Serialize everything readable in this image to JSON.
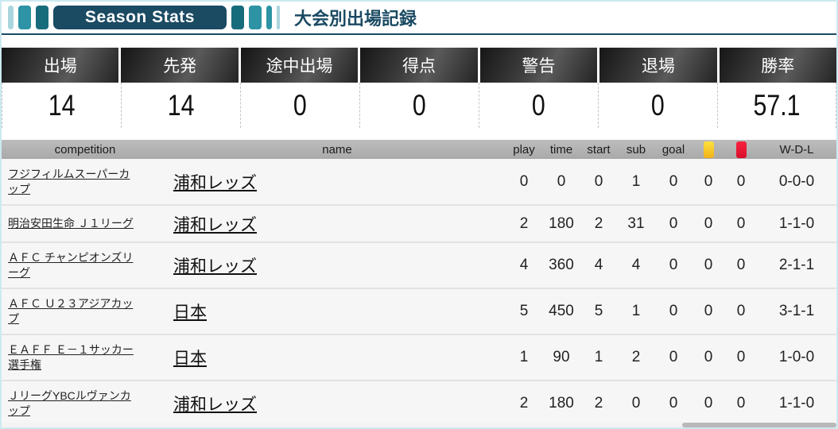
{
  "header": {
    "badge_label": "Season Stats",
    "title": "大会別出場記録"
  },
  "summary": {
    "stats": [
      {
        "label": "出場",
        "value": "14"
      },
      {
        "label": "先発",
        "value": "14"
      },
      {
        "label": "途中出場",
        "value": "0"
      },
      {
        "label": "得点",
        "value": "0"
      },
      {
        "label": "警告",
        "value": "0"
      },
      {
        "label": "退場",
        "value": "0"
      },
      {
        "label": "勝率",
        "value": "57.1"
      }
    ]
  },
  "table": {
    "headers": {
      "competition": "competition",
      "name": "name",
      "play": "play",
      "time": "time",
      "start": "start",
      "sub": "sub",
      "goal": "goal",
      "yellow_icon": "yellow-card-icon",
      "red_icon": "red-card-icon",
      "wdl": "W-D-L"
    },
    "rows": [
      {
        "competition": "フジフィルムスーパーカップ",
        "name": "浦和レッズ",
        "play": "0",
        "time": "0",
        "start": "0",
        "sub": "1",
        "goal": "0",
        "yellow": "0",
        "red": "0",
        "wdl": "0-0-0"
      },
      {
        "competition": "明治安田生命 Ｊ１リーグ",
        "name": "浦和レッズ",
        "play": "2",
        "time": "180",
        "start": "2",
        "sub": "31",
        "goal": "0",
        "yellow": "0",
        "red": "0",
        "wdl": "1-1-0"
      },
      {
        "competition": "ＡＦＣ チャンピオンズリーグ",
        "name": "浦和レッズ",
        "play": "4",
        "time": "360",
        "start": "4",
        "sub": "4",
        "goal": "0",
        "yellow": "0",
        "red": "0",
        "wdl": "2-1-1"
      },
      {
        "competition": "ＡＦＣ Ｕ２３アジアカップ",
        "name": "日本",
        "play": "5",
        "time": "450",
        "start": "5",
        "sub": "1",
        "goal": "0",
        "yellow": "0",
        "red": "0",
        "wdl": "3-1-1"
      },
      {
        "competition": "ＥＡＦＦ Ｅ－１サッカー選手権",
        "name": "日本",
        "play": "1",
        "time": "90",
        "start": "1",
        "sub": "2",
        "goal": "0",
        "yellow": "0",
        "red": "0",
        "wdl": "1-0-0"
      },
      {
        "competition": "ＪリーグYBCルヴァンカップ",
        "name": "浦和レッズ",
        "play": "2",
        "time": "180",
        "start": "2",
        "sub": "0",
        "goal": "0",
        "yellow": "0",
        "red": "0",
        "wdl": "1-1-0"
      }
    ]
  },
  "colors": {
    "navy": "#1b4a63",
    "teal": "#2d93a5",
    "light_teal": "#a9d6de",
    "yellow_card": "#ffd71e",
    "red_card": "#e8112d",
    "header_gray": "#b3b3b3",
    "row_bg": "#f6f6f6"
  }
}
